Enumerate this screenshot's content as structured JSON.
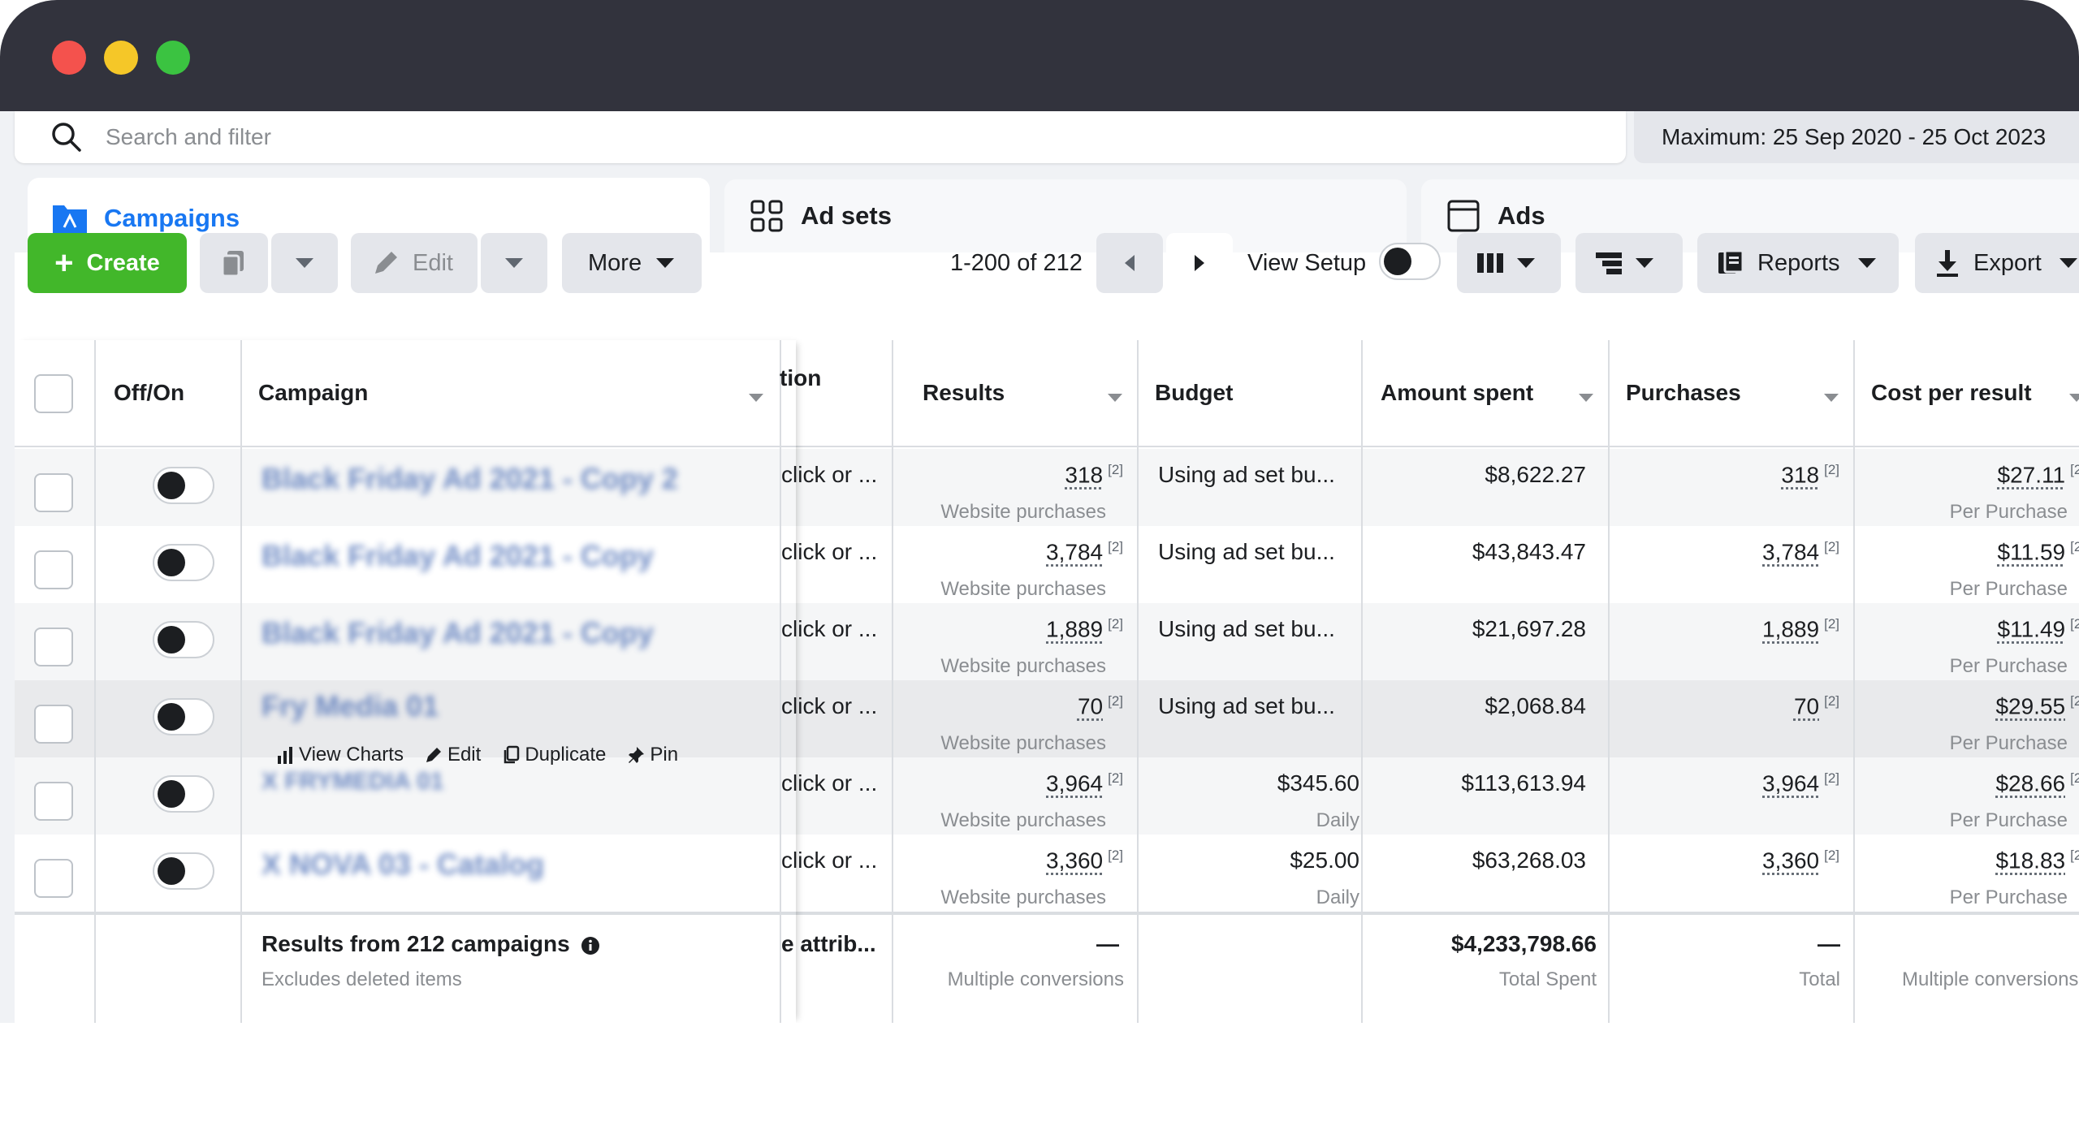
{
  "search": {
    "placeholder": "Search and filter"
  },
  "date_range": "Maximum: 25 Sep 2020 - 25 Oct 2023",
  "tabs": [
    {
      "label": "Campaigns"
    },
    {
      "label": "Ad sets"
    },
    {
      "label": "Ads"
    }
  ],
  "toolbar": {
    "create_label": "Create",
    "edit_label": "Edit",
    "more_label": "More",
    "pagination": "1-200 of 212",
    "view_setup_label": "View Setup",
    "reports_label": "Reports",
    "export_label": "Export"
  },
  "columns": {
    "off_on": "Off/On",
    "campaign": "Campaign",
    "attribution": "tion",
    "results": "Results",
    "budget": "Budget",
    "amount_spent": "Amount spent",
    "purchases": "Purchases",
    "cost_per_result": "Cost per result"
  },
  "rows": [
    {
      "name": "Black Friday Ad 2021 - Copy 2",
      "attribution": "click or ...",
      "results": "318",
      "results_sub": "Website purchases",
      "budget": "Using ad set bu...",
      "budget_sub": "",
      "spent": "$8,622.27",
      "purchases": "318",
      "cpr": "$27.11",
      "cpr_sub": "Per Purchase"
    },
    {
      "name": "Black Friday Ad 2021 - Copy",
      "attribution": "click or ...",
      "results": "3,784",
      "results_sub": "Website purchases",
      "budget": "Using ad set bu...",
      "budget_sub": "",
      "spent": "$43,843.47",
      "purchases": "3,784",
      "cpr": "$11.59",
      "cpr_sub": "Per Purchase"
    },
    {
      "name": "Black Friday Ad 2021 - Copy",
      "attribution": "click or ...",
      "results": "1,889",
      "results_sub": "Website purchases",
      "budget": "Using ad set bu...",
      "budget_sub": "",
      "spent": "$21,697.28",
      "purchases": "1,889",
      "cpr": "$11.49",
      "cpr_sub": "Per Purchase"
    },
    {
      "name": "Fry Media 01",
      "attribution": "click or ...",
      "results": "70",
      "results_sub": "Website purchases",
      "budget": "Using ad set bu...",
      "budget_sub": "",
      "spent": "$2,068.84",
      "purchases": "70",
      "cpr": "$29.55",
      "cpr_sub": "Per Purchase"
    },
    {
      "name": "X FRYMEDIA 01",
      "attribution": "click or ...",
      "results": "3,964",
      "results_sub": "Website purchases",
      "budget": "$345.60",
      "budget_sub": "Daily",
      "spent": "$113,613.94",
      "purchases": "3,964",
      "cpr": "$28.66",
      "cpr_sub": "Per Purchase"
    },
    {
      "name": "X NOVA 03 - Catalog",
      "attribution": "click or ...",
      "results": "3,360",
      "results_sub": "Website purchases",
      "budget": "$25.00",
      "budget_sub": "Daily",
      "spent": "$63,268.03",
      "purchases": "3,360",
      "cpr": "$18.83",
      "cpr_sub": "Per Purchase"
    }
  ],
  "row_actions": {
    "view_charts": "View Charts",
    "edit": "Edit",
    "duplicate": "Duplicate",
    "pin": "Pin"
  },
  "footnote_marker": "[2]",
  "summary": {
    "title": "Results from 212 campaigns",
    "subtitle": "Excludes deleted items",
    "attribution": "e attrib...",
    "results": "—",
    "results_sub": "Multiple conversions",
    "spent": "$4,233,798.66",
    "spent_sub": "Total Spent",
    "purchases": "—",
    "purchases_sub": "Total",
    "cpr": "—",
    "cpr_sub": "Multiple conversions"
  }
}
